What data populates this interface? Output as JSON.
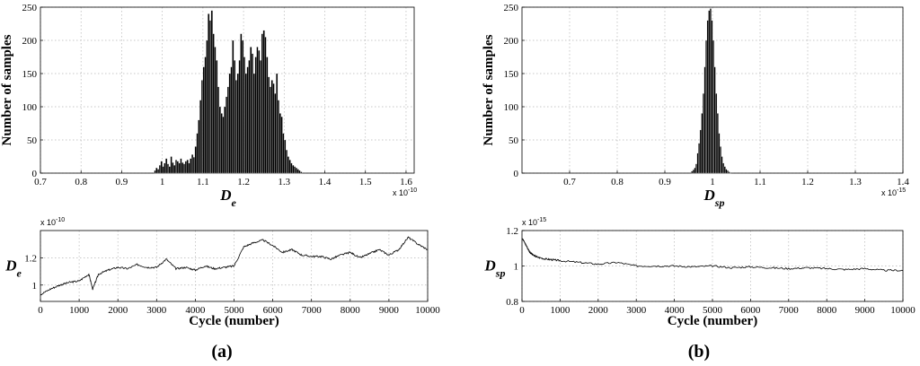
{
  "chart_data": [
    {
      "id": "hist_a",
      "type": "bar",
      "subplot": "histogram",
      "ylabel": "Number of samples",
      "xlabel_main": "D",
      "xlabel_sub": "e",
      "x_multiplier": "x 10",
      "x_multiplier_exp": "-10",
      "xlim": [
        0.7,
        1.62
      ],
      "ylim": [
        0,
        250
      ],
      "xticks": [
        "0.7",
        "0.8",
        "0.9",
        "1",
        "1.1",
        "1.2",
        "1.3",
        "1.4",
        "1.5",
        "1.6"
      ],
      "yticks": [
        "0",
        "50",
        "100",
        "150",
        "200",
        "250"
      ],
      "grid": true,
      "bin_width": 0.004,
      "x": [
        0.982,
        0.986,
        0.99,
        0.994,
        0.998,
        1.002,
        1.006,
        1.01,
        1.014,
        1.018,
        1.022,
        1.026,
        1.03,
        1.034,
        1.038,
        1.042,
        1.046,
        1.05,
        1.054,
        1.058,
        1.062,
        1.066,
        1.07,
        1.074,
        1.078,
        1.082,
        1.086,
        1.09,
        1.094,
        1.098,
        1.102,
        1.106,
        1.11,
        1.114,
        1.118,
        1.122,
        1.126,
        1.13,
        1.134,
        1.138,
        1.142,
        1.146,
        1.15,
        1.154,
        1.158,
        1.162,
        1.166,
        1.17,
        1.174,
        1.178,
        1.182,
        1.186,
        1.19,
        1.194,
        1.198,
        1.202,
        1.206,
        1.21,
        1.214,
        1.218,
        1.222,
        1.226,
        1.23,
        1.234,
        1.238,
        1.242,
        1.246,
        1.25,
        1.254,
        1.258,
        1.262,
        1.266,
        1.27,
        1.274,
        1.278,
        1.282,
        1.286,
        1.29,
        1.294,
        1.298,
        1.302,
        1.306,
        1.31,
        1.314,
        1.318,
        1.322,
        1.326,
        1.33,
        1.334,
        1.338,
        1.342
      ],
      "values": [
        4,
        8,
        6,
        12,
        18,
        10,
        15,
        22,
        14,
        10,
        25,
        16,
        12,
        20,
        18,
        15,
        22,
        16,
        14,
        18,
        20,
        15,
        22,
        28,
        24,
        40,
        60,
        80,
        110,
        140,
        160,
        175,
        200,
        240,
        230,
        245,
        210,
        190,
        170,
        130,
        100,
        90,
        85,
        100,
        115,
        130,
        150,
        160,
        200,
        170,
        140,
        150,
        170,
        210,
        200,
        175,
        150,
        160,
        170,
        190,
        180,
        150,
        175,
        190,
        185,
        170,
        210,
        215,
        205,
        175,
        145,
        130,
        140,
        135,
        120,
        150,
        110,
        90,
        85,
        60,
        50,
        35,
        25,
        20,
        15,
        12,
        10,
        8,
        6,
        4,
        2
      ]
    },
    {
      "id": "trace_a",
      "type": "line",
      "subplot": "trace",
      "ylabel_main": "D",
      "ylabel_sub": "e",
      "y_multiplier": "x 10",
      "y_multiplier_exp": "-10",
      "xlabel": "Cycle (number)",
      "xlim": [
        0,
        10000
      ],
      "ylim": [
        0.88,
        1.4
      ],
      "xticks": [
        "0",
        "1000",
        "2000",
        "3000",
        "4000",
        "5000",
        "6000",
        "7000",
        "8000",
        "9000",
        "10000"
      ],
      "yticks": [
        "1",
        "1.2"
      ],
      "grid": true,
      "x": [
        0,
        250,
        500,
        750,
        1000,
        1250,
        1350,
        1500,
        1750,
        2000,
        2250,
        2500,
        2750,
        3000,
        3250,
        3500,
        3750,
        4000,
        4250,
        4500,
        4750,
        5000,
        5250,
        5500,
        5750,
        6000,
        6250,
        6500,
        6750,
        7000,
        7250,
        7500,
        7750,
        8000,
        8250,
        8500,
        8750,
        9000,
        9250,
        9500,
        9750,
        10000
      ],
      "values": [
        0.93,
        0.97,
        1.0,
        1.02,
        1.03,
        1.08,
        0.97,
        1.08,
        1.11,
        1.13,
        1.12,
        1.15,
        1.13,
        1.13,
        1.19,
        1.12,
        1.13,
        1.11,
        1.14,
        1.12,
        1.13,
        1.14,
        1.28,
        1.31,
        1.33,
        1.29,
        1.24,
        1.26,
        1.22,
        1.21,
        1.21,
        1.19,
        1.22,
        1.24,
        1.2,
        1.23,
        1.26,
        1.22,
        1.26,
        1.35,
        1.3,
        1.26
      ]
    },
    {
      "id": "hist_b",
      "type": "bar",
      "subplot": "histogram",
      "ylabel": "Number of samples",
      "xlabel_main": "D",
      "xlabel_sub": "sp",
      "x_multiplier": "x 10",
      "x_multiplier_exp": "-15",
      "xlim": [
        0.6,
        1.4
      ],
      "ylim": [
        0,
        250
      ],
      "xticks": [
        "0.7",
        "0.8",
        "0.9",
        "1",
        "1.1",
        "1.2",
        "1.3",
        "1.4"
      ],
      "yticks": [
        "0",
        "50",
        "100",
        "150",
        "200",
        "250"
      ],
      "grid": true,
      "bin_width": 0.003,
      "x": [
        0.957,
        0.96,
        0.963,
        0.966,
        0.969,
        0.972,
        0.975,
        0.978,
        0.981,
        0.984,
        0.987,
        0.99,
        0.993,
        0.996,
        0.999,
        1.002,
        1.005,
        1.008,
        1.011,
        1.014,
        1.017,
        1.02,
        1.023,
        1.026,
        1.029,
        1.032,
        1.035,
        1.038
      ],
      "values": [
        3,
        5,
        8,
        14,
        30,
        45,
        65,
        90,
        120,
        160,
        200,
        230,
        245,
        248,
        230,
        200,
        160,
        120,
        90,
        60,
        40,
        25,
        15,
        10,
        6,
        4,
        2,
        1
      ]
    },
    {
      "id": "trace_b",
      "type": "line",
      "subplot": "trace",
      "ylabel_main": "D",
      "ylabel_sub": "sp",
      "y_multiplier": "x 10",
      "y_multiplier_exp": "-15",
      "xlabel": "Cycle (number)",
      "xlim": [
        0,
        10000
      ],
      "ylim": [
        0.8,
        1.2
      ],
      "xticks": [
        "0",
        "1000",
        "2000",
        "3000",
        "4000",
        "5000",
        "6000",
        "7000",
        "8000",
        "9000",
        "10000"
      ],
      "yticks": [
        "0.8",
        "1",
        "1.2"
      ],
      "grid": true,
      "x": [
        0,
        100,
        200,
        300,
        400,
        600,
        800,
        1000,
        1500,
        2000,
        2500,
        3000,
        3500,
        4000,
        4500,
        5000,
        5500,
        6000,
        6500,
        7000,
        7500,
        8000,
        8500,
        9000,
        9500,
        10000
      ],
      "values": [
        1.16,
        1.12,
        1.08,
        1.06,
        1.05,
        1.04,
        1.035,
        1.03,
        1.02,
        1.01,
        1.02,
        1.0,
        1.0,
        1.0,
        0.995,
        1.0,
        0.99,
        0.995,
        0.99,
        0.985,
        0.99,
        0.985,
        0.98,
        0.985,
        0.975,
        0.975
      ]
    }
  ],
  "panel_labels": {
    "a": "(a)",
    "b": "(b)"
  }
}
